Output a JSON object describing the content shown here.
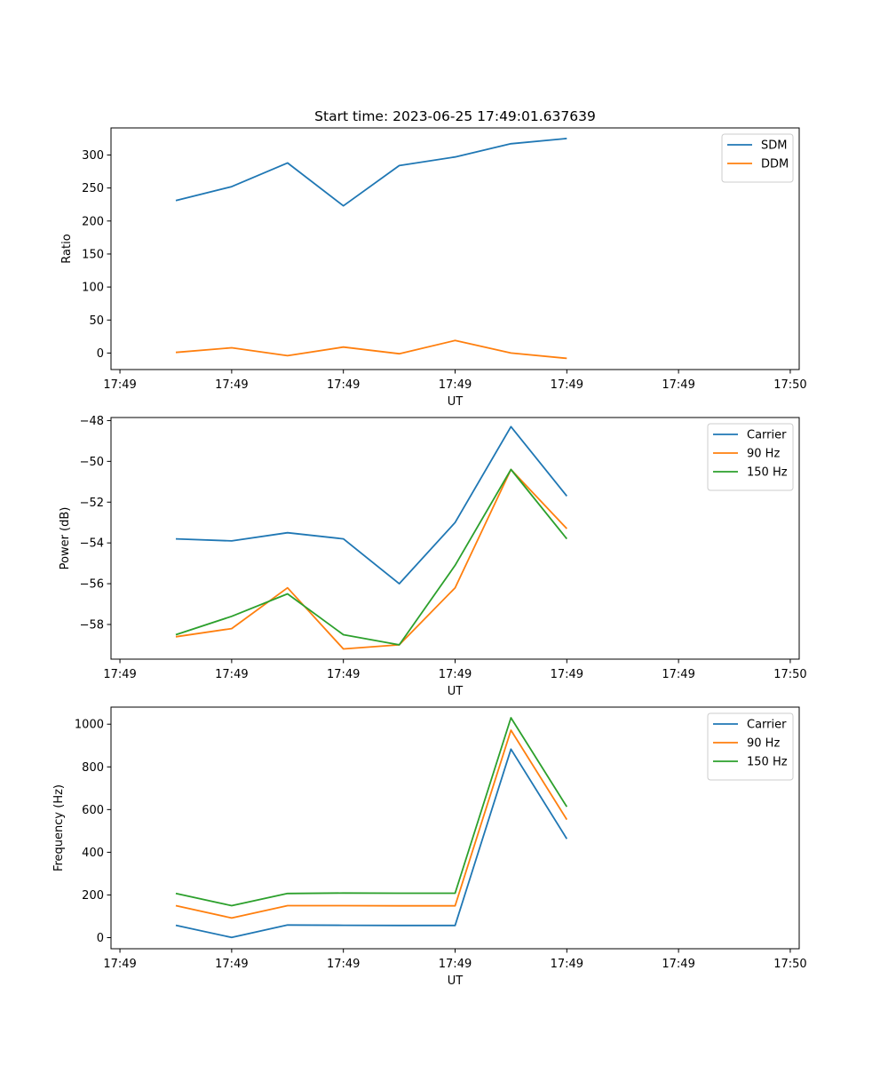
{
  "chart_data": [
    {
      "type": "line",
      "title": "Start time: 2023-06-25 17:49:01.637639",
      "xlabel": "UT",
      "ylabel": "Ratio",
      "x": [
        0.5,
        1.0,
        1.5,
        2.0,
        2.5,
        3.0,
        3.5,
        4.0
      ],
      "xlim": [
        -0.08,
        6.08
      ],
      "x_ticks": [
        0,
        1,
        2,
        3,
        4,
        5,
        6
      ],
      "x_tick_labels": [
        "17:49",
        "17:49",
        "17:49",
        "17:49",
        "17:49",
        "17:49",
        "17:50"
      ],
      "ylim": [
        -25,
        341
      ],
      "y_ticks": [
        0,
        50,
        100,
        150,
        200,
        250,
        300
      ],
      "y_tick_labels": [
        "0",
        "50",
        "100",
        "150",
        "200",
        "250",
        "300"
      ],
      "legend_position": "top-right",
      "grid": false,
      "series": [
        {
          "name": "SDM",
          "color": "#1f77b4",
          "values": [
            231,
            252,
            288,
            223,
            284,
            297,
            317,
            325
          ]
        },
        {
          "name": "DDM",
          "color": "#ff7f0e",
          "values": [
            1,
            8,
            -4,
            9,
            -1,
            19,
            0,
            -8
          ]
        }
      ]
    },
    {
      "type": "line",
      "title": "",
      "xlabel": "UT",
      "ylabel": "Power (dB)",
      "x": [
        0.5,
        1.0,
        1.5,
        2.0,
        2.5,
        3.0,
        3.5,
        4.0
      ],
      "xlim": [
        -0.08,
        6.08
      ],
      "x_ticks": [
        0,
        1,
        2,
        3,
        4,
        5,
        6
      ],
      "x_tick_labels": [
        "17:49",
        "17:49",
        "17:49",
        "17:49",
        "17:49",
        "17:49",
        "17:50"
      ],
      "ylim": [
        -59.7,
        -47.85
      ],
      "y_ticks": [
        -58,
        -56,
        -54,
        -52,
        -50,
        -48
      ],
      "y_tick_labels": [
        "−58",
        "−56",
        "−54",
        "−52",
        "−50",
        "−48"
      ],
      "legend_position": "top-right",
      "grid": false,
      "series": [
        {
          "name": "Carrier",
          "color": "#1f77b4",
          "values": [
            -53.8,
            -53.9,
            -53.5,
            -53.8,
            -56.0,
            -53.0,
            -48.3,
            -51.7
          ]
        },
        {
          "name": "90 Hz",
          "color": "#ff7f0e",
          "values": [
            -58.6,
            -58.2,
            -56.2,
            -59.2,
            -59.0,
            -56.2,
            -50.4,
            -53.3
          ]
        },
        {
          "name": "150 Hz",
          "color": "#2ca02c",
          "values": [
            -58.5,
            -57.6,
            -56.5,
            -58.5,
            -59.0,
            -55.1,
            -50.4,
            -53.8
          ]
        }
      ]
    },
    {
      "type": "line",
      "title": "",
      "xlabel": "UT",
      "ylabel": "Frequency (Hz)",
      "x": [
        0.5,
        1.0,
        1.5,
        2.0,
        2.5,
        3.0,
        3.5,
        4.0
      ],
      "xlim": [
        -0.08,
        6.08
      ],
      "x_ticks": [
        0,
        1,
        2,
        3,
        4,
        5,
        6
      ],
      "x_tick_labels": [
        "17:49",
        "17:49",
        "17:49",
        "17:49",
        "17:49",
        "17:49",
        "17:50"
      ],
      "ylim": [
        -52,
        1080
      ],
      "y_ticks": [
        0,
        200,
        400,
        600,
        800,
        1000
      ],
      "y_tick_labels": [
        "0",
        "200",
        "400",
        "600",
        "800",
        "1000"
      ],
      "legend_position": "top-right",
      "grid": false,
      "series": [
        {
          "name": "Carrier",
          "color": "#1f77b4",
          "values": [
            58,
            1,
            59,
            58,
            57,
            57,
            883,
            463
          ]
        },
        {
          "name": "90 Hz",
          "color": "#ff7f0e",
          "values": [
            150,
            92,
            150,
            150,
            149,
            149,
            972,
            553
          ]
        },
        {
          "name": "150 Hz",
          "color": "#2ca02c",
          "values": [
            207,
            150,
            207,
            209,
            208,
            208,
            1030,
            613
          ]
        }
      ]
    }
  ]
}
